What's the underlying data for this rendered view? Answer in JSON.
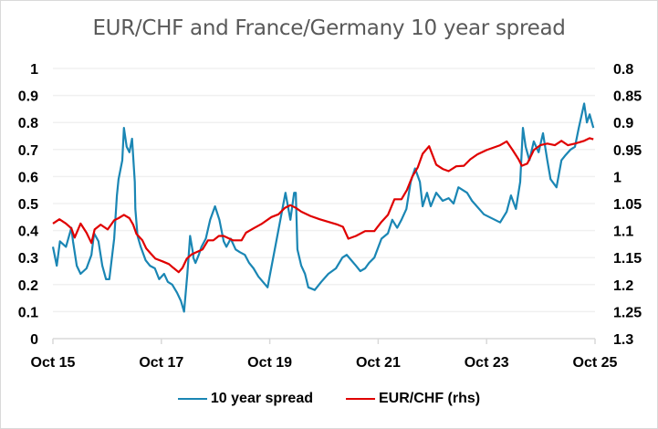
{
  "chart_data": {
    "type": "line",
    "title": "EUR/CHF and France/Germany 10 year spread",
    "xlabel": "",
    "ylabel": "",
    "x_unit": "years since Oct 2015",
    "x_ticks": [
      {
        "x": 0,
        "label": "Oct 15"
      },
      {
        "x": 2,
        "label": "Oct 17"
      },
      {
        "x": 4,
        "label": "Oct 19"
      },
      {
        "x": 6,
        "label": "Oct 21"
      },
      {
        "x": 8,
        "label": "Oct 23"
      },
      {
        "x": 10,
        "label": "Oct 25"
      }
    ],
    "xlim": [
      0,
      10
    ],
    "y_left": {
      "ylim": [
        0,
        1
      ],
      "ticks": [
        "0",
        "0.1",
        "0.2",
        "0.3",
        "0.4",
        "0.5",
        "0.6",
        "0.7",
        "0.8",
        "0.9",
        "1"
      ],
      "tick_values": [
        0,
        0.1,
        0.2,
        0.3,
        0.4,
        0.5,
        0.6,
        0.7,
        0.8,
        0.9,
        1
      ]
    },
    "y_right": {
      "ylim": [
        0.8,
        1.3
      ],
      "inverted": true,
      "ticks": [
        "0.8",
        "0.85",
        "0.9",
        "0.95",
        "1",
        "1.05",
        "1.1",
        "1.15",
        "1.2",
        "1.25",
        "1.3"
      ],
      "tick_values": [
        0.8,
        0.85,
        0.9,
        0.95,
        1.0,
        1.05,
        1.1,
        1.15,
        1.2,
        1.25,
        1.3
      ]
    },
    "grid": true,
    "legend_position": "bottom",
    "series": [
      {
        "name": "10 year spread",
        "axis": "left",
        "color": "#1a86b4",
        "x": [
          0,
          0.07,
          0.13,
          0.24,
          0.34,
          0.37,
          0.44,
          0.51,
          0.62,
          0.71,
          0.76,
          0.84,
          0.91,
          0.98,
          1.04,
          1.13,
          1.18,
          1.21,
          1.28,
          1.31,
          1.36,
          1.41,
          1.46,
          1.51,
          1.52,
          1.56,
          1.62,
          1.71,
          1.79,
          1.88,
          1.96,
          2.05,
          2.12,
          2.2,
          2.29,
          2.36,
          2.42,
          2.48,
          2.53,
          2.59,
          2.59,
          2.63,
          2.69,
          2.74,
          2.82,
          2.9,
          2.99,
          3.07,
          3.15,
          3.2,
          3.28,
          3.37,
          3.45,
          3.54,
          3.62,
          3.7,
          3.79,
          3.96,
          4.13,
          4.29,
          4.38,
          4.45,
          4.48,
          4.51,
          4.58,
          4.65,
          4.71,
          4.83,
          4.95,
          5.08,
          5.22,
          5.34,
          5.42,
          5.59,
          5.67,
          5.76,
          5.83,
          5.93,
          6.06,
          6.18,
          6.26,
          6.35,
          6.43,
          6.52,
          6.6,
          6.68,
          6.77,
          6.82,
          6.9,
          6.97,
          7.07,
          7.19,
          7.3,
          7.39,
          7.48,
          7.64,
          7.73,
          7.95,
          8.25,
          8.37,
          8.45,
          8.54,
          8.62,
          8.67,
          8.72,
          8.79,
          8.87,
          8.96,
          9.04,
          9.12,
          9.18,
          9.29,
          9.38,
          9.46,
          9.55,
          9.63,
          9.7,
          9.8,
          9.85,
          9.9,
          9.97
        ],
        "values": [
          0.34,
          0.27,
          0.36,
          0.34,
          0.41,
          0.36,
          0.27,
          0.24,
          0.26,
          0.31,
          0.39,
          0.36,
          0.27,
          0.22,
          0.22,
          0.37,
          0.53,
          0.59,
          0.66,
          0.78,
          0.71,
          0.69,
          0.74,
          0.58,
          0.48,
          0.38,
          0.34,
          0.29,
          0.27,
          0.26,
          0.22,
          0.24,
          0.21,
          0.2,
          0.17,
          0.14,
          0.1,
          0.24,
          0.38,
          0.31,
          0.3,
          0.28,
          0.31,
          0.34,
          0.37,
          0.44,
          0.49,
          0.44,
          0.36,
          0.34,
          0.37,
          0.33,
          0.32,
          0.31,
          0.28,
          0.26,
          0.23,
          0.19,
          0.37,
          0.54,
          0.44,
          0.54,
          0.54,
          0.33,
          0.27,
          0.24,
          0.19,
          0.18,
          0.21,
          0.24,
          0.26,
          0.3,
          0.31,
          0.27,
          0.25,
          0.26,
          0.28,
          0.3,
          0.37,
          0.39,
          0.44,
          0.41,
          0.44,
          0.48,
          0.58,
          0.63,
          0.58,
          0.49,
          0.54,
          0.49,
          0.54,
          0.51,
          0.52,
          0.5,
          0.56,
          0.54,
          0.51,
          0.46,
          0.43,
          0.47,
          0.53,
          0.48,
          0.58,
          0.78,
          0.71,
          0.66,
          0.73,
          0.69,
          0.76,
          0.66,
          0.59,
          0.56,
          0.66,
          0.68,
          0.7,
          0.71,
          0.78,
          0.87,
          0.8,
          0.83,
          0.78
        ]
      },
      {
        "name": "EUR/CHF (rhs)",
        "axis": "right",
        "color": "#e00000",
        "x": [
          0,
          0.12,
          0.24,
          0.34,
          0.4,
          0.51,
          0.62,
          0.71,
          0.77,
          0.88,
          1.01,
          1.13,
          1.21,
          1.31,
          1.41,
          1.48,
          1.54,
          1.65,
          1.72,
          1.8,
          1.89,
          2.02,
          2.14,
          2.22,
          2.32,
          2.39,
          2.47,
          2.56,
          2.76,
          2.86,
          2.96,
          3.06,
          3.15,
          3.32,
          3.48,
          3.56,
          3.7,
          3.86,
          4.03,
          4.16,
          4.28,
          4.38,
          4.48,
          4.58,
          4.75,
          4.92,
          5.08,
          5.25,
          5.35,
          5.45,
          5.59,
          5.76,
          5.93,
          6.06,
          6.18,
          6.3,
          6.43,
          6.53,
          6.63,
          6.73,
          6.82,
          6.94,
          7.07,
          7.19,
          7.3,
          7.44,
          7.58,
          7.7,
          7.83,
          8.0,
          8.25,
          8.37,
          8.48,
          8.59,
          8.65,
          8.75,
          8.87,
          8.99,
          9.12,
          9.26,
          9.38,
          9.5,
          9.63,
          9.8,
          9.9,
          9.97
        ],
        "values": [
          1.087,
          1.079,
          1.087,
          1.096,
          1.113,
          1.087,
          1.104,
          1.123,
          1.098,
          1.089,
          1.098,
          1.081,
          1.077,
          1.071,
          1.077,
          1.089,
          1.106,
          1.118,
          1.133,
          1.142,
          1.152,
          1.157,
          1.162,
          1.169,
          1.177,
          1.169,
          1.152,
          1.144,
          1.135,
          1.118,
          1.118,
          1.11,
          1.11,
          1.118,
          1.118,
          1.104,
          1.096,
          1.087,
          1.075,
          1.07,
          1.058,
          1.053,
          1.058,
          1.065,
          1.073,
          1.079,
          1.084,
          1.089,
          1.093,
          1.115,
          1.11,
          1.101,
          1.101,
          1.084,
          1.071,
          1.042,
          1.042,
          1.025,
          1.0,
          0.983,
          0.958,
          0.944,
          0.978,
          0.986,
          0.99,
          0.981,
          0.98,
          0.968,
          0.959,
          0.951,
          0.942,
          0.935,
          0.951,
          0.968,
          0.98,
          0.976,
          0.951,
          0.942,
          0.939,
          0.942,
          0.934,
          0.942,
          0.939,
          0.934,
          0.929,
          0.931
        ]
      }
    ]
  },
  "legend": [
    {
      "label": "10 year spread",
      "color": "#1a86b4"
    },
    {
      "label": "EUR/CHF (rhs)",
      "color": "#e00000"
    }
  ]
}
